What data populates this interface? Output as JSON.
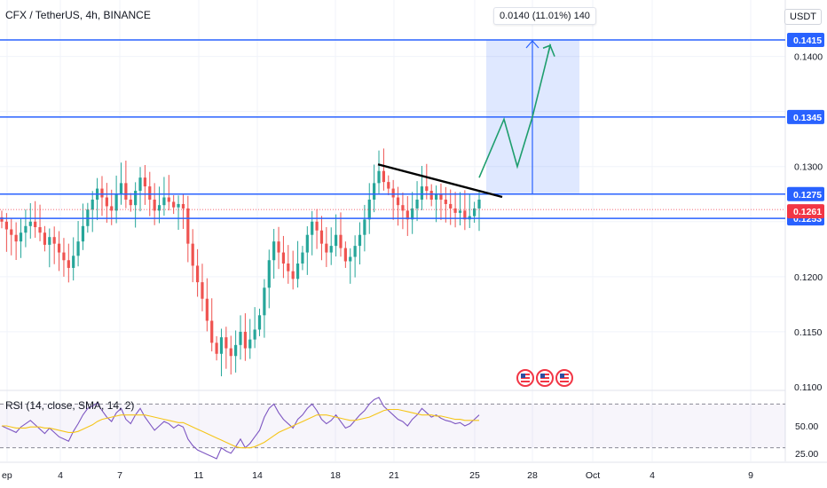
{
  "header": {
    "title": "CFX / TetherUS, 4h, BINANCE",
    "currency": "USDT"
  },
  "measure_label": "0.0140 (11.01%) 140",
  "rsi_label": "RSI (14, close, SMA, 14, 2)",
  "colors": {
    "up": "#26a69a",
    "down": "#ef5350",
    "level_line": "#2962ff",
    "last_price": "#f23645",
    "projection": "#1e9e6e",
    "trend": "#000000",
    "rsi_line": "#7e57c2",
    "rsi_sma": "#f5c518"
  },
  "chart_data": {
    "type": "candlestick",
    "symbol": "CFX / TetherUS",
    "interval": "4h",
    "exchange": "BINANCE",
    "y_axis_ticks": [
      0.115,
      0.12,
      0.13,
      0.14
    ],
    "y_axis_partial_ticks": [
      "0.1100"
    ],
    "ylim": [
      0.11,
      0.1434
    ],
    "x_axis_ticks": [
      "ep",
      "4",
      "7",
      "11",
      "14",
      "18",
      "21",
      "25",
      "28",
      "Oct",
      "4",
      "9"
    ],
    "last_price": 0.1261,
    "levels": [
      0.1415,
      0.1345,
      0.1275,
      0.1253
    ],
    "trendline": {
      "from": 0.1302,
      "to": 0.127
    },
    "projection_box": {
      "low": 0.1275,
      "high": 0.1415,
      "change": "0.0140",
      "percent": "11.01%",
      "bars": 140
    },
    "projection_path": [
      0.129,
      0.1343,
      0.13,
      0.1345,
      0.141,
      0.14
    ],
    "candles_close": [
      0.125,
      0.1243,
      0.1238,
      0.1232,
      0.124,
      0.1246,
      0.125,
      0.1245,
      0.124,
      0.1229,
      0.1236,
      0.123,
      0.1222,
      0.1215,
      0.1208,
      0.1219,
      0.1232,
      0.1246,
      0.1261,
      0.127,
      0.128,
      0.1272,
      0.1264,
      0.126,
      0.1275,
      0.1285,
      0.127,
      0.1265,
      0.1278,
      0.129,
      0.1282,
      0.127,
      0.126,
      0.1265,
      0.1272,
      0.1268,
      0.1263,
      0.1266,
      0.1262,
      0.123,
      0.121,
      0.1195,
      0.118,
      0.116,
      0.114,
      0.113,
      0.1145,
      0.1135,
      0.1128,
      0.1138,
      0.115,
      0.1135,
      0.1143,
      0.1152,
      0.1165,
      0.119,
      0.1215,
      0.1232,
      0.1222,
      0.1212,
      0.1205,
      0.1198,
      0.1212,
      0.1222,
      0.1238,
      0.125,
      0.1242,
      0.123,
      0.1222,
      0.1228,
      0.1238,
      0.1226,
      0.1214,
      0.1218,
      0.1228,
      0.1238,
      0.1252,
      0.127,
      0.1285,
      0.1296,
      0.1286,
      0.128,
      0.1272,
      0.1265,
      0.126,
      0.1252,
      0.1262,
      0.127,
      0.1282,
      0.1278,
      0.127,
      0.1275,
      0.127,
      0.1266,
      0.1262,
      0.1258,
      0.126,
      0.1252,
      0.1255,
      0.1262,
      0.127
    ],
    "rsi": {
      "name": "RSI (14, close, SMA, 14, 2)",
      "ylim": [
        20,
        80
      ],
      "ticks": [
        25,
        50
      ],
      "tick_labels": [
        "25.00",
        "50.00"
      ],
      "bands": [
        70,
        30
      ],
      "values": [
        50,
        48,
        46,
        44,
        49,
        52,
        55,
        51,
        47,
        43,
        48,
        44,
        40,
        38,
        36,
        45,
        52,
        60,
        66,
        68,
        71,
        64,
        58,
        54,
        62,
        66,
        56,
        52,
        60,
        66,
        58,
        52,
        46,
        50,
        54,
        52,
        48,
        51,
        49,
        38,
        32,
        28,
        26,
        24,
        22,
        20,
        30,
        27,
        25,
        31,
        38,
        30,
        34,
        40,
        46,
        58,
        66,
        70,
        62,
        56,
        52,
        48,
        56,
        60,
        66,
        70,
        64,
        56,
        52,
        55,
        60,
        54,
        48,
        50,
        55,
        60,
        64,
        70,
        74,
        76,
        68,
        64,
        60,
        56,
        54,
        50,
        56,
        60,
        66,
        62,
        58,
        60,
        57,
        55,
        54,
        52,
        53,
        50,
        52,
        56,
        60
      ],
      "sma": [
        50,
        50,
        49,
        48,
        48,
        48,
        49,
        49,
        49,
        48,
        48,
        47,
        46,
        45,
        44,
        44,
        45,
        47,
        49,
        51,
        54,
        56,
        57,
        58,
        59,
        60,
        60,
        60,
        60,
        60,
        60,
        59,
        58,
        57,
        56,
        55,
        54,
        53,
        53,
        51,
        49,
        47,
        45,
        43,
        41,
        39,
        37,
        35,
        33,
        31,
        30,
        30,
        30,
        31,
        33,
        35,
        38,
        41,
        44,
        46,
        48,
        50,
        52,
        54,
        56,
        58,
        60,
        60,
        60,
        59,
        58,
        57,
        56,
        55,
        55,
        56,
        57,
        58,
        60,
        62,
        64,
        65,
        65,
        65,
        64,
        63,
        62,
        61,
        60,
        60,
        60,
        59,
        59,
        58,
        57,
        56,
        56,
        55,
        55,
        55,
        55
      ]
    }
  }
}
